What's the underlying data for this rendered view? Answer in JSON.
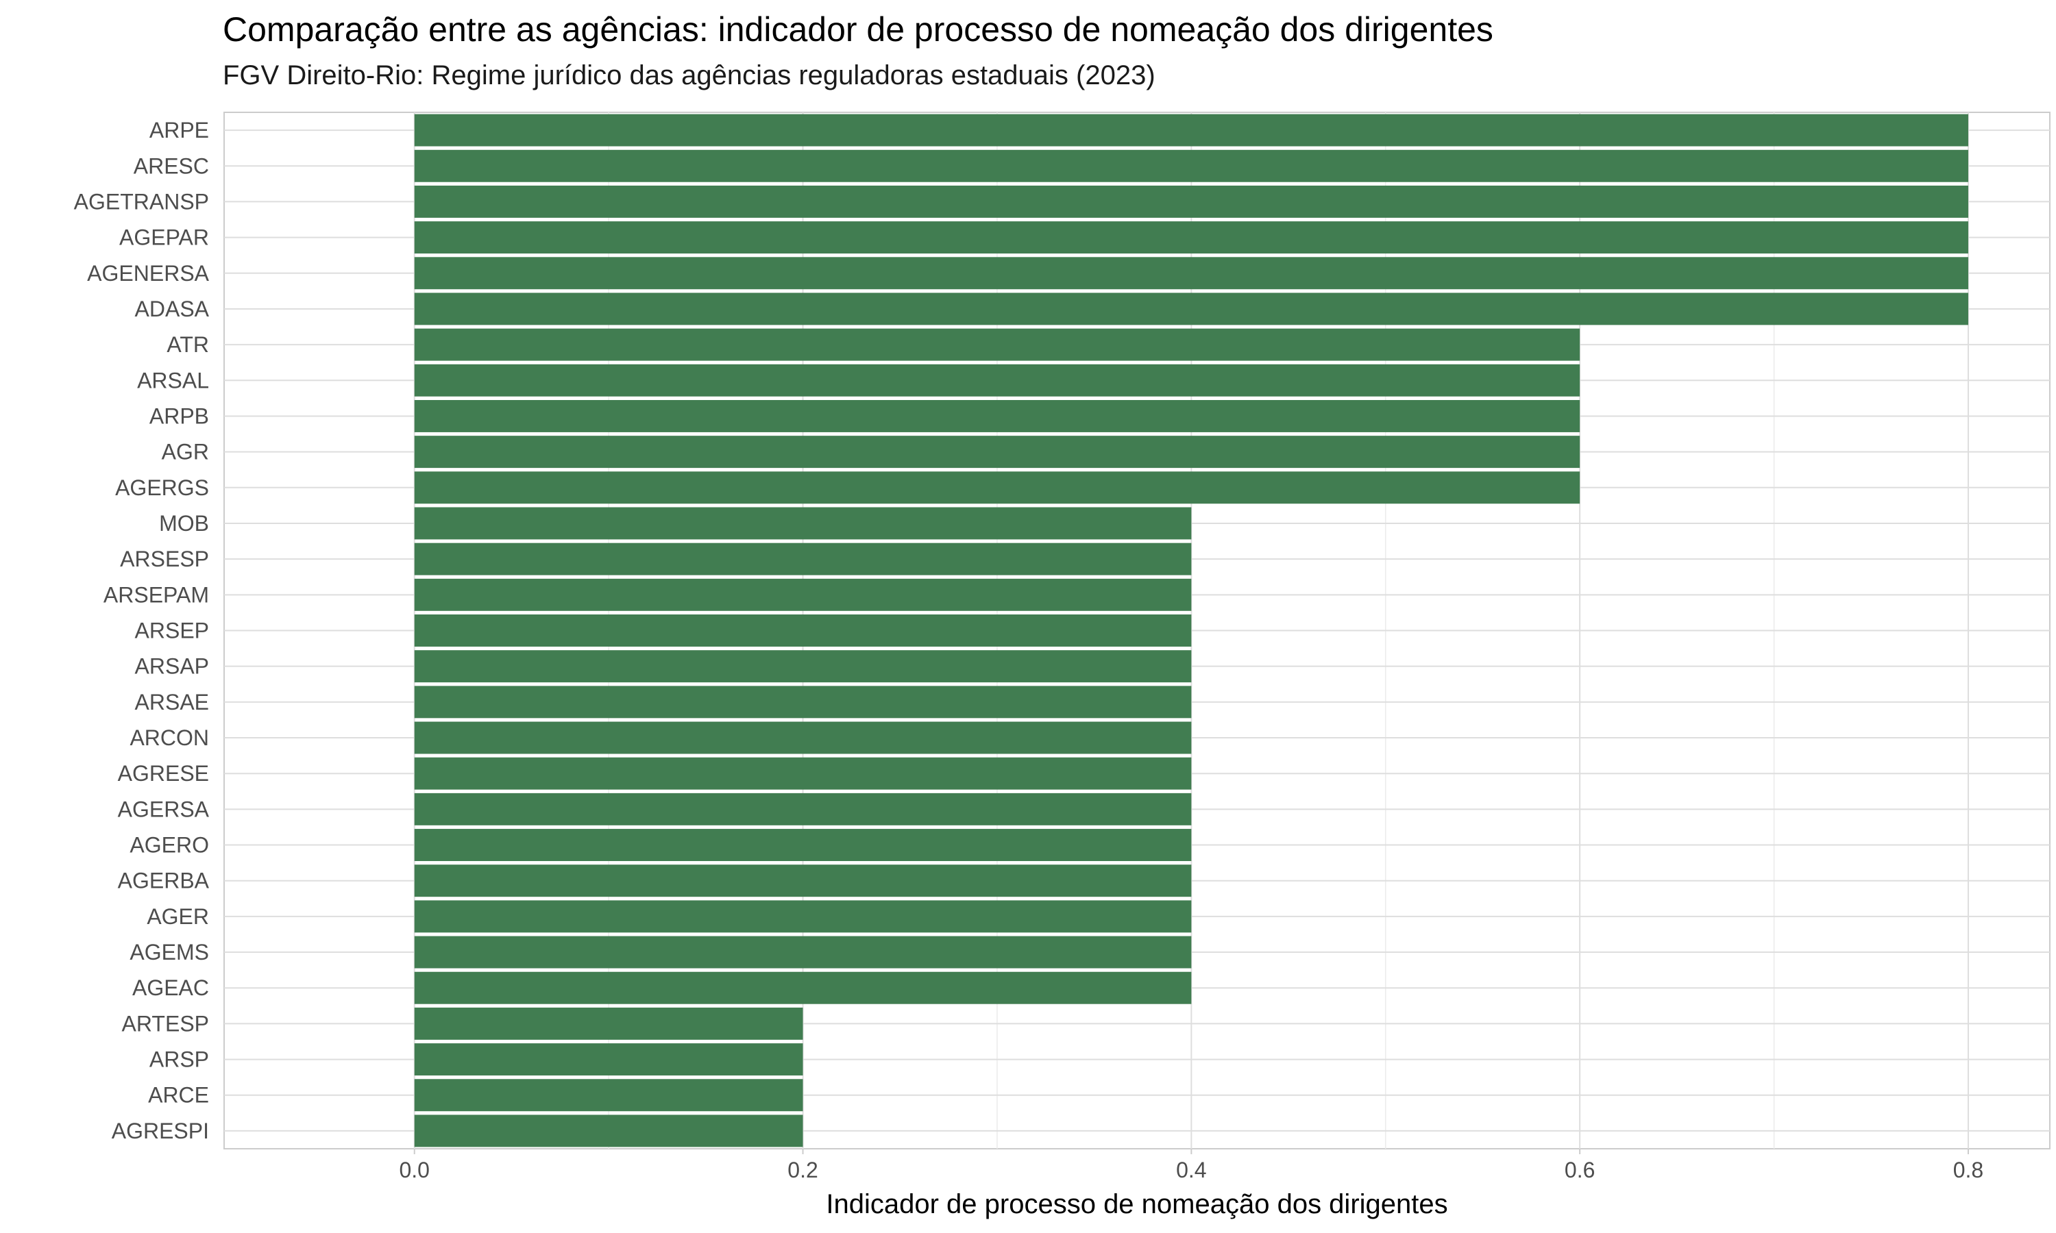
{
  "chart_data": {
    "type": "bar",
    "orientation": "horizontal",
    "title": "Comparação entre as agências: indicador de processo de nomeação dos dirigentes",
    "subtitle": "FGV Direito-Rio: Regime jurídico das agências reguladoras estaduais (2023)",
    "xlabel": "Indicador de processo de nomeação dos dirigentes",
    "ylabel": "",
    "xlim": [
      -0.098,
      0.842
    ],
    "xticks": [
      "0.0",
      "0.2",
      "0.4",
      "0.6",
      "0.8"
    ],
    "grid": true,
    "bar_color": "#417D51",
    "categories": [
      "ARPE",
      "ARESC",
      "AGETRANSP",
      "AGEPAR",
      "AGENERSA",
      "ADASA",
      "ATR",
      "ARSAL",
      "ARPB",
      "AGR",
      "AGERGS",
      "MOB",
      "ARSESP",
      "ARSEPAM",
      "ARSEP",
      "ARSAP",
      "ARSAE",
      "ARCON",
      "AGRESE",
      "AGERSA",
      "AGERO",
      "AGERBA",
      "AGER",
      "AGEMS",
      "AGEAC",
      "ARTESP",
      "ARSP",
      "ARCE",
      "AGRESPI"
    ],
    "values": [
      0.8,
      0.8,
      0.8,
      0.8,
      0.8,
      0.8,
      0.6,
      0.6,
      0.6,
      0.6,
      0.6,
      0.4,
      0.4,
      0.4,
      0.4,
      0.4,
      0.4,
      0.4,
      0.4,
      0.4,
      0.4,
      0.4,
      0.4,
      0.4,
      0.4,
      0.2,
      0.2,
      0.2,
      0.2
    ]
  }
}
